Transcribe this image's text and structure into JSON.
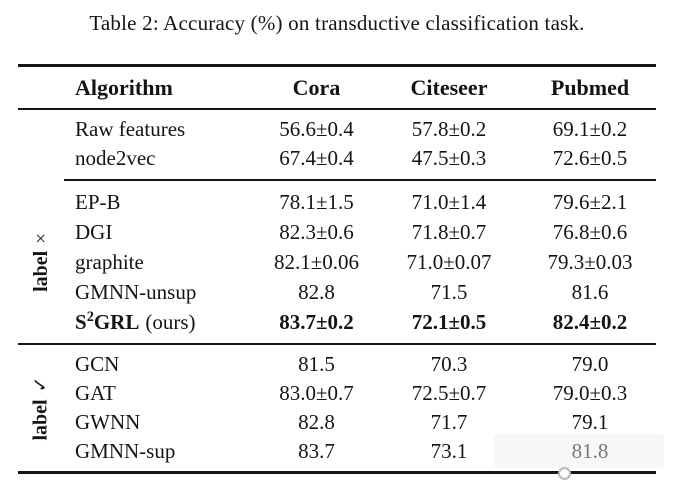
{
  "title": "Table 2: Accuracy (%) on transductive classification task.",
  "table": {
    "columns": [
      "Algorithm",
      "Cora",
      "Citeseer",
      "Pubmed"
    ],
    "sections": [
      {
        "rows": [
          {
            "name": "Raw features",
            "cora": "56.6±0.4",
            "citeseer": "57.8±0.2",
            "pubmed": "69.1±0.2"
          },
          {
            "name": "node2vec",
            "cora": "67.4±0.4",
            "citeseer": "47.5±0.3",
            "pubmed": "72.6±0.5"
          }
        ]
      },
      {
        "label_word": "label",
        "label_symbol": "×",
        "rows": [
          {
            "name": "EP-B",
            "cora": "78.1±1.5",
            "citeseer": "71.0±1.4",
            "pubmed": "79.6±2.1"
          },
          {
            "name": "DGI",
            "cora": "82.3±0.6",
            "citeseer": "71.8±0.7",
            "pubmed": "76.8±0.6"
          },
          {
            "name": "graphite",
            "cora": "82.1±0.06",
            "citeseer": "71.0±0.07",
            "pubmed": "79.3±0.03"
          },
          {
            "name": "GMNN-unsup",
            "cora": "82.8",
            "citeseer": "71.5",
            "pubmed": "81.6"
          },
          {
            "name_pre": "S",
            "name_sup": "2",
            "name_post": "GRL",
            "suffix": "(ours)",
            "cora": "83.7±0.2",
            "citeseer": "72.1±0.5",
            "pubmed": "82.4±0.2"
          }
        ]
      },
      {
        "label_word": "label",
        "label_symbol": "✓",
        "rows": [
          {
            "name": "GCN",
            "cora": "81.5",
            "citeseer": "70.3",
            "pubmed": "79.0"
          },
          {
            "name": "GAT",
            "cora": "83.0±0.7",
            "citeseer": "72.5±0.7",
            "pubmed": "79.0±0.3"
          },
          {
            "name": "GWNN",
            "cora": "82.8",
            "citeseer": "71.7",
            "pubmed": "79.1"
          },
          {
            "name": "GMNN-sup",
            "cora": "83.7",
            "citeseer": "73.1",
            "pubmed": "81.8"
          }
        ]
      }
    ]
  }
}
